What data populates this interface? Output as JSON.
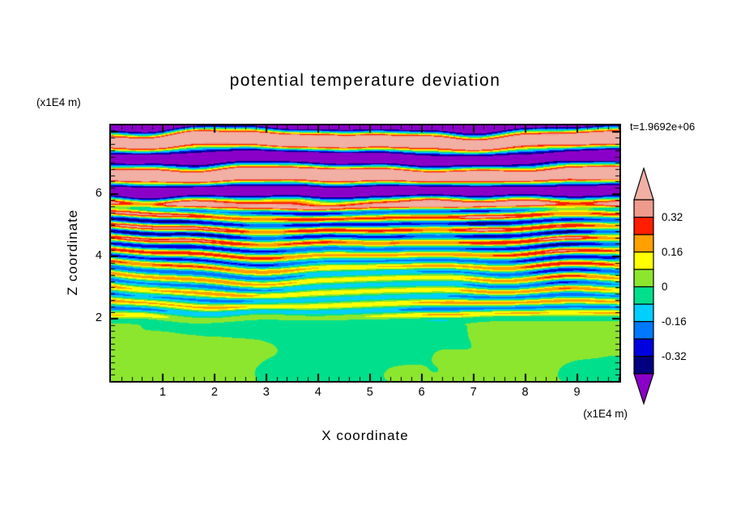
{
  "title": "potential temperature deviation",
  "time_label": "t=1.9692e+06",
  "axes": {
    "x": {
      "label": "X coordinate",
      "unit": "(x1E4 m)",
      "range": [
        0,
        9.82
      ],
      "major_ticks": [
        1,
        2,
        3,
        4,
        5,
        6,
        7,
        8,
        9
      ],
      "minor_tick_step": 0.2
    },
    "z": {
      "label": "Z coordinate",
      "unit": "(x1E4 m)",
      "range": [
        0,
        8.2
      ],
      "major_ticks": [
        2,
        4,
        6
      ],
      "minor_tick_step": 0.2
    }
  },
  "chart_data": {
    "type": "heatmap",
    "title": "potential temperature deviation",
    "xlabel": "X coordinate",
    "ylabel": "Z coordinate",
    "annotation": "t=1.9692e+06",
    "x_range": [
      0,
      9.82
    ],
    "z_range": [
      0,
      8.2
    ],
    "grid": false,
    "legend_position": "right-colorbar",
    "colorbar": {
      "boundaries": [
        -0.4,
        -0.32,
        -0.24,
        -0.16,
        -0.08,
        0,
        0.08,
        0.16,
        0.24,
        0.32,
        0.4
      ],
      "labels_top_to_bottom": [
        "0.32",
        "0.16",
        "0",
        "-0.16",
        "-0.32"
      ],
      "labeled_values": [
        0.32,
        0.16,
        0,
        -0.16,
        -0.32
      ],
      "segment_colors_bottom_to_top": [
        "#000080",
        "#0000E0",
        "#0078FF",
        "#00CFFF",
        "#00E08C",
        "#8CE62E",
        "#FFFF00",
        "#FFA000",
        "#FF1E00",
        "#EE9A8C"
      ],
      "under_arrow_color": "#8B00C8",
      "over_arrow_color": "#F2AFA4"
    },
    "field_model": {
      "description": "Potential temperature deviation cross-section: weak mottled anomalies (|v|<0.05) below z=2, fine alternating horizontal stripe turbulence (|v|~0.1-0.4) for 2<z<5.6, and large-amplitude wavy bands saturating the scale (|v|>0.4, salmon/purple) above z=5.6.",
      "regions": [
        {
          "name": "surface-layer",
          "z": [
            0,
            2.0
          ],
          "amplitude": 0.05
        },
        {
          "name": "stripe-layer",
          "z": [
            2.0,
            5.6
          ],
          "amplitude": 0.3,
          "stripe_wavelength": 0.4
        },
        {
          "name": "wave-layer",
          "z": [
            5.6,
            8.2
          ],
          "amplitude": 0.65,
          "band_wavelength": 1.1
        }
      ],
      "seed": 7
    }
  }
}
